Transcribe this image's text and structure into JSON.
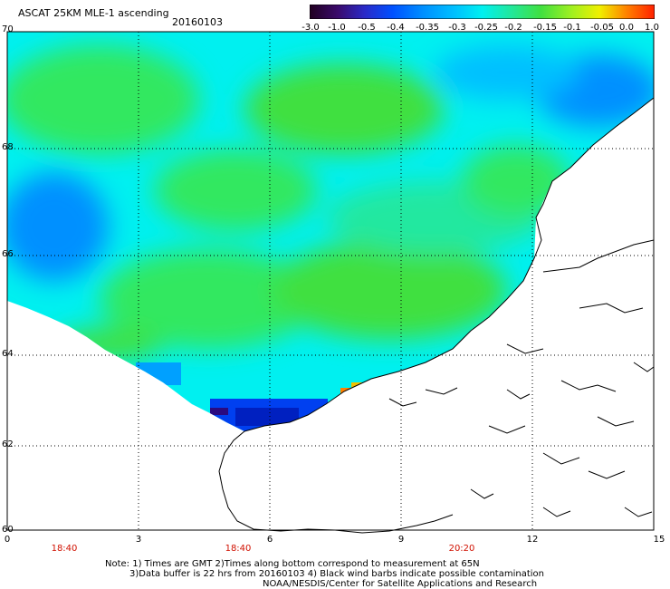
{
  "header": {
    "title": "ASCAT 25KM MLE-1 ascending",
    "date": "20160103"
  },
  "colorbar": {
    "labels": [
      "-3.0",
      "-1.0",
      "-0.5",
      "-0.4",
      "-0.35",
      "-0.3",
      "-0.25",
      "-0.2",
      "-0.15",
      "-0.1",
      "-0.05",
      "0.0",
      "1.0"
    ],
    "colors": [
      "#200020",
      "#3a0a6a",
      "#2a2ac8",
      "#0050ff",
      "#0090ff",
      "#00c0ff",
      "#00f0f0",
      "#20e8a0",
      "#40e040",
      "#a0f020",
      "#f0f000",
      "#ff8000",
      "#ff2000"
    ]
  },
  "axes": {
    "lat_labels": [
      "70",
      "68",
      "66",
      "64",
      "62",
      "60"
    ],
    "lon_labels": [
      "0",
      "3",
      "6",
      "9",
      "12",
      "15"
    ],
    "time_labels": [
      "18:40",
      "18:40",
      "20:20"
    ]
  },
  "notes": {
    "line1": "Note: 1) Times are GMT 2)Times along bottom correspond to measurement at 65N",
    "line2": "3)Data buffer is 22 hrs from 20160103 4) Black wind barbs indicate possible contamination",
    "line3": "NOAA/NESDIS/Center for Satellite Applications and Research"
  },
  "map_colors": {
    "sea_cyan": "#00f0f0",
    "sea_green": "#30e860",
    "sea_blue": "#0090ff",
    "deep_blue": "#0030e0",
    "land": "#ffffff",
    "coast": "#000000"
  }
}
